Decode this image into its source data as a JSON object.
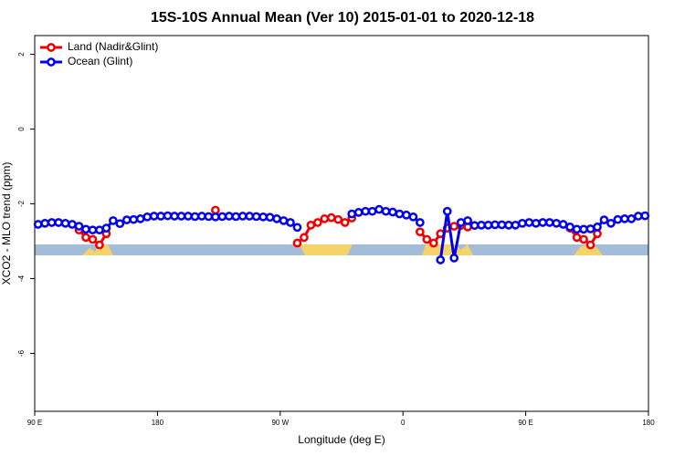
{
  "chart_data": {
    "type": "line",
    "title": "15S-10S Annual Mean (Ver 10)   2015-01-01 to 2020-12-18",
    "x_label": "Longitude (deg E)",
    "y_label": "XCO2 - MLO trend (ppm)",
    "xlim": [
      90,
      540
    ],
    "ylim": [
      -7.55,
      2.5
    ],
    "xticks": [
      {
        "value": 90,
        "label": "90 E"
      },
      180,
      {
        "value": 270,
        "label": "90 W"
      },
      {
        "value": 360,
        "label": "0"
      },
      {
        "value": 450,
        "label": "90 E"
      },
      {
        "value": 540,
        "label": "180"
      }
    ],
    "yticks": [
      2,
      0,
      -2,
      -4,
      -6
    ],
    "legend": "top-left",
    "x": [
      92.5,
      97.5,
      102.5,
      107.5,
      112.5,
      117.5,
      122.5,
      127.5,
      132.5,
      137.5,
      142.5,
      147.5,
      152.5,
      157.5,
      162.5,
      167.5,
      172.5,
      177.5,
      182.5,
      187.5,
      192.5,
      197.5,
      202.5,
      207.5,
      212.5,
      217.5,
      222.5,
      227.5,
      232.5,
      237.5,
      242.5,
      247.5,
      252.5,
      257.5,
      262.5,
      267.5,
      272.5,
      277.5,
      282.5,
      287.5,
      292.5,
      297.5,
      302.5,
      307.5,
      312.5,
      317.5,
      322.5,
      327.5,
      332.5,
      337.5,
      342.5,
      347.5,
      352.5,
      357.5,
      362.5,
      367.5,
      372.5,
      377.5,
      382.5,
      387.5,
      392.5,
      397.5,
      402.5,
      407.5,
      412.5,
      417.5,
      422.5,
      427.5,
      432.5,
      437.5,
      442.5,
      447.5,
      452.5,
      457.5,
      462.5,
      467.5,
      472.5,
      477.5,
      482.5,
      487.5,
      492.5,
      497.5,
      502.5,
      507.5,
      512.5,
      517.5,
      522.5,
      527.5,
      532.5,
      537.5
    ],
    "series": [
      {
        "name": "Land (Nadir&Glint)",
        "color": "#ee0000",
        "values": [
          null,
          null,
          null,
          null,
          null,
          null,
          -2.7,
          -2.9,
          -2.95,
          -3.1,
          -2.8,
          null,
          null,
          null,
          null,
          null,
          null,
          null,
          null,
          null,
          null,
          null,
          null,
          null,
          null,
          null,
          -2.17,
          null,
          null,
          null,
          null,
          null,
          null,
          null,
          null,
          null,
          null,
          null,
          -3.05,
          -2.9,
          -2.57,
          -2.5,
          -2.4,
          -2.37,
          -2.42,
          -2.5,
          -2.38,
          null,
          null,
          null,
          null,
          null,
          null,
          null,
          null,
          null,
          -2.75,
          -2.95,
          -3.05,
          -2.8,
          -2.65,
          -2.6,
          -2.58,
          -2.62,
          null,
          null,
          null,
          null,
          null,
          null,
          null,
          null,
          null,
          null,
          null,
          null,
          null,
          null,
          -2.65,
          -2.9,
          -2.95,
          -3.1,
          -2.8,
          null,
          null,
          null,
          null,
          null,
          null,
          null
        ]
      },
      {
        "name": "Ocean (Glint)",
        "color": "#0000ee",
        "values": [
          -2.55,
          -2.52,
          -2.5,
          -2.5,
          -2.52,
          -2.55,
          -2.6,
          -2.68,
          -2.7,
          -2.7,
          -2.65,
          -2.45,
          -2.53,
          -2.43,
          -2.42,
          -2.4,
          -2.35,
          -2.33,
          -2.33,
          -2.32,
          -2.33,
          -2.33,
          -2.33,
          -2.34,
          -2.33,
          -2.34,
          -2.35,
          -2.34,
          -2.33,
          -2.34,
          -2.33,
          -2.33,
          -2.34,
          -2.35,
          -2.36,
          -2.4,
          -2.45,
          -2.5,
          -2.63,
          null,
          null,
          null,
          null,
          null,
          null,
          null,
          -2.27,
          -2.23,
          -2.2,
          -2.2,
          -2.15,
          -2.2,
          -2.22,
          -2.27,
          -2.3,
          -2.35,
          -2.5,
          null,
          null,
          -3.5,
          -2.2,
          -3.45,
          -2.5,
          -2.45,
          -2.58,
          -2.57,
          -2.57,
          -2.56,
          -2.56,
          -2.57,
          -2.57,
          -2.52,
          -2.5,
          -2.52,
          -2.5,
          -2.5,
          -2.52,
          -2.55,
          -2.62,
          -2.68,
          -2.68,
          -2.67,
          -2.62,
          -2.43,
          -2.52,
          -2.42,
          -2.4,
          -2.4,
          -2.33,
          -2.32
        ]
      }
    ]
  }
}
